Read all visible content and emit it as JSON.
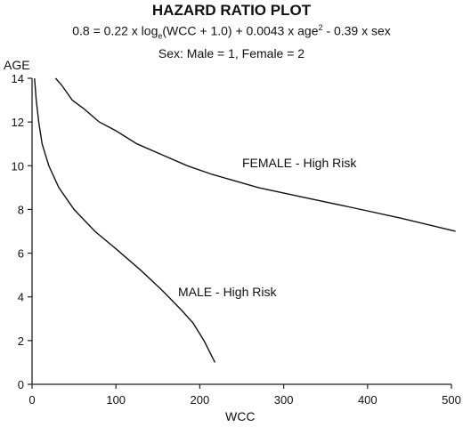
{
  "chart_data": {
    "type": "line",
    "title": "HAZARD RATIO PLOT",
    "formula": {
      "p1": "0.8 = 0.22 x log",
      "sub": "e",
      "p2": "(WCC + 1.0) + 0.0043 x age",
      "sup": "2",
      "p3": " - 0.39 x sex"
    },
    "subtitle": "Sex: Male = 1, Female = 2",
    "xlabel": "WCC",
    "ylabel": "AGE",
    "xlim": [
      0,
      500
    ],
    "ylim": [
      0,
      14
    ],
    "x_ticks": [
      0,
      100,
      200,
      300,
      400,
      500
    ],
    "y_ticks": [
      0,
      2,
      4,
      6,
      8,
      10,
      12,
      14
    ],
    "grid": false,
    "series": [
      {
        "name": "FEMALE - High Risk",
        "points": [
          [
            28,
            14
          ],
          [
            35,
            13.7
          ],
          [
            48,
            13
          ],
          [
            62,
            12.6
          ],
          [
            80,
            12
          ],
          [
            100,
            11.6
          ],
          [
            125,
            11
          ],
          [
            155,
            10.5
          ],
          [
            185,
            10
          ],
          [
            215,
            9.6
          ],
          [
            270,
            9
          ],
          [
            330,
            8.5
          ],
          [
            380,
            8.1
          ],
          [
            440,
            7.6
          ],
          [
            505,
            7
          ]
        ]
      },
      {
        "name": "MALE - High Risk",
        "points": [
          [
            3,
            14
          ],
          [
            5,
            13
          ],
          [
            8,
            12
          ],
          [
            12,
            11
          ],
          [
            20,
            10
          ],
          [
            32,
            9
          ],
          [
            50,
            8
          ],
          [
            75,
            7
          ],
          [
            100,
            6.2
          ],
          [
            130,
            5.2
          ],
          [
            155,
            4.3
          ],
          [
            178,
            3.4
          ],
          [
            192,
            2.8
          ],
          [
            205,
            2
          ],
          [
            218,
            1
          ]
        ]
      }
    ],
    "annotations": [
      "FEMALE - High Risk",
      "MALE - High Risk"
    ]
  }
}
